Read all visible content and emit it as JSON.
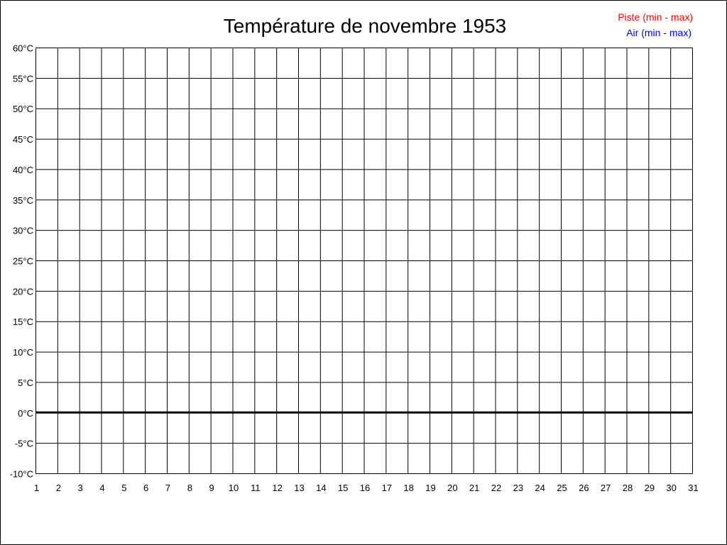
{
  "chart_data": {
    "type": "line",
    "title": "Température de novembre 1953",
    "xlabel": "",
    "ylabel": "",
    "x_ticks": [
      1,
      2,
      3,
      4,
      5,
      6,
      7,
      8,
      9,
      10,
      11,
      12,
      13,
      14,
      15,
      16,
      17,
      18,
      19,
      20,
      21,
      22,
      23,
      24,
      25,
      26,
      27,
      28,
      29,
      30,
      31
    ],
    "y_ticks": [
      "60°C",
      "55°C",
      "50°C",
      "45°C",
      "40°C",
      "35°C",
      "30°C",
      "25°C",
      "20°C",
      "15°C",
      "10°C",
      "5°C",
      "0°C",
      "-5°C",
      "-10°C"
    ],
    "xlim": [
      1,
      31
    ],
    "ylim": [
      -10,
      60
    ],
    "grid": true,
    "legend_position": "top-right",
    "series": [
      {
        "name": "Piste (min - max)",
        "color": "#ff0000",
        "values": []
      },
      {
        "name": "Air (min - max)",
        "color": "#0000ff",
        "values": []
      }
    ]
  }
}
